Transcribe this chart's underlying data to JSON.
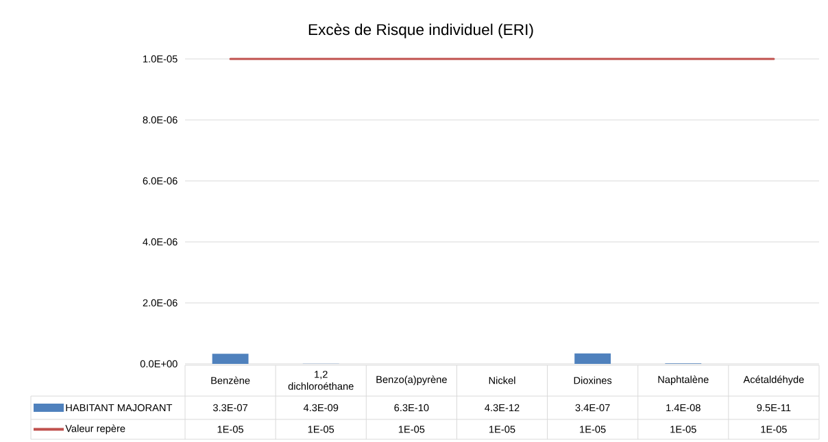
{
  "chart_data": {
    "type": "bar",
    "title": "Excès de Risque individuel (ERI)",
    "categories": [
      "Benzène",
      "1,2 dichloroéthane",
      "Benzo(a)pyrène",
      "Nickel",
      "Dioxines",
      "Naphtalène",
      "Acétaldéhyde"
    ],
    "series": [
      {
        "name": "HABITANT MAJORANT",
        "color": "#4f81bd",
        "values": [
          3.3e-07,
          4.3e-09,
          6.3e-10,
          4.3e-12,
          3.4e-07,
          1.4e-08,
          9.5e-11
        ],
        "value_labels": [
          "3.3E-07",
          "4.3E-09",
          "6.3E-10",
          "4.3E-12",
          "3.4E-07",
          "1.4E-08",
          "9.5E-11"
        ]
      },
      {
        "name": "Valeur repère",
        "type": "line",
        "color": "#c0504d",
        "values": [
          1e-05,
          1e-05,
          1e-05,
          1e-05,
          1e-05,
          1e-05,
          1e-05
        ],
        "value_labels": [
          "1E-05",
          "1E-05",
          "1E-05",
          "1E-05",
          "1E-05",
          "1E-05",
          "1E-05"
        ]
      }
    ],
    "ylim": [
      0,
      1e-05
    ],
    "yticks": [
      {
        "value": 0,
        "label": "0.0E+00"
      },
      {
        "value": 2e-06,
        "label": "2.0E-06"
      },
      {
        "value": 4e-06,
        "label": "4.0E-06"
      },
      {
        "value": 6e-06,
        "label": "6.0E-06"
      },
      {
        "value": 8e-06,
        "label": "8.0E-06"
      },
      {
        "value": 1e-05,
        "label": "1.0E-05"
      }
    ],
    "grid": "y",
    "legend": "bottom left"
  }
}
